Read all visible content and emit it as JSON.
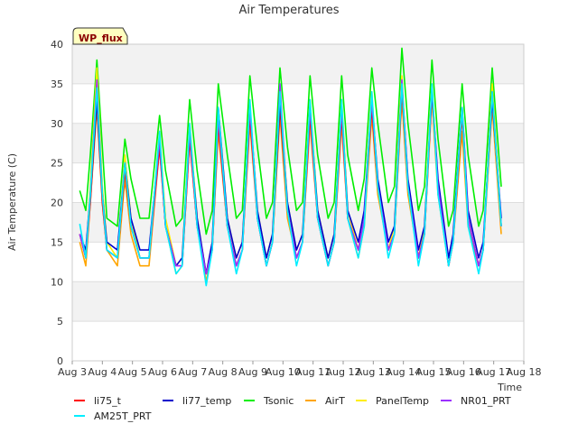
{
  "chart_data": {
    "type": "line",
    "title": "Air Temperatures",
    "xlabel": "Time",
    "ylabel": "Air Temperature (C)",
    "site_badge": "WP_flux",
    "xlim": [
      3,
      18
    ],
    "ylim": [
      0,
      40
    ],
    "x_ticks": [
      3,
      4,
      5,
      6,
      7,
      8,
      9,
      10,
      11,
      12,
      13,
      14,
      15,
      16,
      17,
      18
    ],
    "x_tick_labels": [
      "Aug 3",
      "Aug 4",
      "Aug 5",
      "Aug 6",
      "Aug 7",
      "Aug 8",
      "Aug 9",
      "Aug 10",
      "Aug 11",
      "Aug 12",
      "Aug 13",
      "Aug 14",
      "Aug 15",
      "Aug 16",
      "Aug 17",
      "Aug 18"
    ],
    "y_ticks": [
      0,
      5,
      10,
      15,
      20,
      25,
      30,
      35,
      40
    ],
    "y_tick_labels": [
      "0",
      "5",
      "10",
      "15",
      "20",
      "25",
      "30",
      "35",
      "40"
    ],
    "grid": true,
    "band_shading": true,
    "legend_position": "bottom",
    "x_value_note": "x = day of August (fractional)",
    "series": [
      {
        "name": "li75_t",
        "color": "#ff0000",
        "x": [
          3.25,
          3.45,
          3.6,
          3.82,
          4.0,
          4.15,
          4.5,
          4.75,
          4.95,
          5.25,
          5.55,
          5.9,
          6.1,
          6.45,
          6.65,
          6.9,
          7.15,
          7.45,
          7.65,
          7.85,
          8.15,
          8.45,
          8.65,
          8.9,
          9.15,
          9.45,
          9.65,
          9.9,
          10.15,
          10.45,
          10.65,
          10.9,
          11.15,
          11.5,
          11.7,
          11.95,
          12.15,
          12.5,
          12.7,
          12.95,
          13.15,
          13.5,
          13.7,
          13.95,
          14.15,
          14.5,
          14.7,
          14.95,
          15.15,
          15.5,
          15.65,
          15.95,
          16.15,
          16.5,
          16.65,
          16.95,
          17.25
        ],
        "y": [
          16,
          13,
          20,
          33,
          20,
          14,
          13,
          24,
          17,
          13,
          13,
          27,
          17,
          12,
          12,
          28,
          17,
          11,
          14,
          30,
          17,
          12,
          14,
          31,
          18,
          12,
          15,
          32,
          19,
          13,
          15,
          31,
          18,
          12,
          15,
          31,
          18,
          14,
          18,
          32,
          22,
          14,
          16,
          34,
          22,
          13,
          16,
          34,
          22,
          12,
          15,
          31,
          18,
          12,
          14,
          34,
          17
        ]
      },
      {
        "name": "li77_temp",
        "color": "#0000cc",
        "x": [
          3.25,
          3.45,
          3.6,
          3.82,
          4.0,
          4.15,
          4.5,
          4.75,
          4.95,
          5.25,
          5.55,
          5.9,
          6.1,
          6.45,
          6.65,
          6.9,
          7.15,
          7.45,
          7.65,
          7.85,
          8.15,
          8.45,
          8.65,
          8.9,
          9.15,
          9.45,
          9.65,
          9.9,
          10.15,
          10.45,
          10.65,
          10.9,
          11.15,
          11.5,
          11.7,
          11.95,
          12.15,
          12.5,
          12.7,
          12.95,
          13.15,
          13.5,
          13.7,
          13.95,
          14.15,
          14.5,
          14.7,
          14.95,
          15.15,
          15.5,
          15.65,
          15.95,
          16.15,
          16.5,
          16.65,
          16.95,
          17.25
        ],
        "y": [
          16,
          14,
          21,
          33,
          21,
          15,
          14,
          25,
          18,
          14,
          14,
          28,
          17,
          12,
          13,
          29,
          18,
          11,
          15,
          32,
          18,
          13,
          15,
          32,
          19,
          13,
          16,
          33,
          20,
          14,
          16,
          32,
          19,
          13,
          16,
          32,
          19,
          15,
          19,
          33,
          23,
          15,
          17,
          35,
          23,
          14,
          17,
          34,
          23,
          13,
          16,
          32,
          19,
          13,
          15,
          33,
          18
        ]
      },
      {
        "name": "Tsonic",
        "color": "#00ee00",
        "x": [
          3.25,
          3.45,
          3.6,
          3.82,
          4.0,
          4.15,
          4.5,
          4.75,
          4.95,
          5.25,
          5.55,
          5.9,
          6.1,
          6.45,
          6.65,
          6.9,
          7.15,
          7.45,
          7.65,
          7.85,
          8.15,
          8.45,
          8.65,
          8.9,
          9.15,
          9.45,
          9.65,
          9.9,
          10.15,
          10.45,
          10.65,
          10.9,
          11.15,
          11.5,
          11.7,
          11.95,
          12.15,
          12.5,
          12.7,
          12.95,
          13.15,
          13.5,
          13.7,
          13.95,
          14.15,
          14.5,
          14.7,
          14.95,
          15.15,
          15.5,
          15.65,
          15.95,
          16.15,
          16.5,
          16.65,
          16.95,
          17.25
        ],
        "y": [
          21.5,
          19,
          26,
          38,
          27,
          18,
          17,
          28,
          23,
          18,
          18,
          31,
          24,
          17,
          18,
          33,
          24,
          16,
          19,
          35,
          26,
          18,
          19,
          36,
          27,
          18,
          20,
          37,
          27,
          19,
          20,
          36,
          26,
          18,
          20,
          36,
          26,
          19,
          23,
          37,
          30,
          20,
          22,
          39.5,
          30,
          19,
          22,
          38,
          28,
          17,
          19,
          35,
          26,
          17,
          19,
          37,
          22
        ]
      },
      {
        "name": "AirT",
        "color": "#ffa500",
        "x": [
          3.25,
          3.45,
          3.6,
          3.82,
          4.0,
          4.15,
          4.5,
          4.75,
          4.95,
          5.25,
          5.55,
          5.9,
          6.1,
          6.45,
          6.65,
          6.9,
          7.15,
          7.45,
          7.65,
          7.85,
          8.15,
          8.45,
          8.65,
          8.9,
          9.15,
          9.45,
          9.65,
          9.9,
          10.15,
          10.45,
          10.65,
          10.9,
          11.15,
          11.5,
          11.7,
          11.95,
          12.15,
          12.5,
          12.7,
          12.95,
          13.15,
          13.5,
          13.7,
          13.95,
          14.15,
          14.5,
          14.7,
          14.95,
          15.15,
          15.5,
          15.65,
          15.95,
          16.15,
          16.5,
          16.65,
          16.95,
          17.25
        ],
        "y": [
          15,
          12,
          20,
          32,
          20,
          14,
          12,
          23,
          16,
          12,
          12,
          27,
          17,
          11,
          12,
          28,
          17,
          10,
          14,
          29,
          17,
          12,
          14,
          30,
          18,
          12,
          15,
          31,
          18,
          13,
          15,
          30,
          18,
          12,
          15,
          30,
          18,
          13,
          17,
          31,
          21,
          14,
          16,
          33,
          21,
          13,
          16,
          33,
          21,
          12,
          15,
          29,
          17,
          12,
          14,
          32,
          16
        ]
      },
      {
        "name": "PanelTemp",
        "color": "#ffee00",
        "x": [
          3.25,
          3.45,
          3.6,
          3.82,
          4.0,
          4.15,
          4.5,
          4.75,
          4.95,
          5.25,
          5.55,
          5.9,
          6.1,
          6.45,
          6.65,
          6.9,
          7.15,
          7.45,
          7.65,
          7.85,
          8.15,
          8.45,
          8.65,
          8.9,
          9.15,
          9.45,
          9.65,
          9.9,
          10.15,
          10.45,
          10.65,
          10.9,
          11.15,
          11.5,
          11.7,
          11.95,
          12.15,
          12.5,
          12.7,
          12.95,
          13.15,
          13.5,
          13.7,
          13.95,
          14.15,
          14.5,
          14.7,
          14.95,
          15.15,
          15.5,
          15.65,
          15.95,
          16.15,
          16.5,
          16.65,
          16.95,
          17.25
        ],
        "y": [
          16,
          13,
          22,
          37,
          22,
          15,
          13,
          26,
          18,
          13,
          13,
          29,
          18,
          12,
          13,
          30,
          18,
          11,
          15,
          32,
          18,
          13,
          15,
          32,
          19,
          13,
          16,
          34,
          20,
          14,
          16,
          33,
          19,
          13,
          16,
          33,
          19,
          14,
          18,
          34,
          22,
          14,
          17,
          36,
          22,
          13,
          17,
          35,
          22,
          12,
          15,
          32,
          18,
          12,
          14,
          35,
          17
        ]
      },
      {
        "name": "NR01_PRT",
        "color": "#9b30ff",
        "x": [
          3.25,
          3.45,
          3.6,
          3.82,
          4.0,
          4.15,
          4.5,
          4.75,
          4.95,
          5.25,
          5.55,
          5.9,
          6.1,
          6.45,
          6.65,
          6.9,
          7.15,
          7.45,
          7.65,
          7.85,
          8.15,
          8.45,
          8.65,
          8.9,
          9.15,
          9.45,
          9.65,
          9.9,
          10.15,
          10.45,
          10.65,
          10.9,
          11.15,
          11.5,
          11.7,
          11.95,
          12.15,
          12.5,
          12.7,
          12.95,
          13.15,
          13.5,
          13.7,
          13.95,
          14.15,
          14.5,
          14.7,
          14.95,
          15.15,
          15.5,
          15.65,
          15.95,
          16.15,
          16.5,
          16.65,
          16.95,
          17.25
        ],
        "y": [
          16,
          13,
          21,
          35.5,
          21,
          14,
          13,
          25,
          17,
          13,
          13,
          28,
          17,
          12,
          12,
          29,
          17,
          11,
          14,
          31,
          17,
          12,
          14,
          32,
          18,
          12,
          15,
          35,
          19,
          13,
          15,
          32,
          18,
          12,
          15,
          32,
          18,
          14,
          18,
          33,
          22,
          14,
          16,
          35.5,
          22,
          13,
          16,
          34.5,
          22,
          12,
          15,
          32,
          18,
          12,
          14,
          34,
          17
        ]
      },
      {
        "name": "AM25T_PRT",
        "color": "#00eeff",
        "x": [
          3.25,
          3.45,
          3.6,
          3.82,
          4.0,
          4.15,
          4.5,
          4.75,
          4.95,
          5.25,
          5.55,
          5.9,
          6.1,
          6.45,
          6.65,
          6.9,
          7.15,
          7.45,
          7.65,
          7.85,
          8.15,
          8.45,
          8.65,
          8.9,
          9.15,
          9.45,
          9.65,
          9.9,
          10.15,
          10.45,
          10.65,
          10.9,
          11.15,
          11.5,
          11.7,
          11.95,
          12.15,
          12.5,
          12.7,
          12.95,
          13.15,
          13.5,
          13.7,
          13.95,
          14.15,
          14.5,
          14.7,
          14.95,
          15.15,
          15.5,
          15.65,
          15.95,
          16.15,
          16.5,
          16.65,
          16.95,
          17.25
        ],
        "y": [
          17.3,
          13,
          21,
          34.5,
          21,
          14,
          13,
          25,
          17,
          13,
          13,
          29,
          17,
          11,
          12,
          30,
          17,
          9.5,
          14,
          32,
          17,
          11,
          14,
          33,
          18,
          12,
          15,
          34,
          19,
          12,
          15,
          33,
          18,
          12,
          15,
          33,
          18,
          13,
          17,
          34,
          22,
          13,
          16,
          35,
          22,
          12,
          16,
          35,
          21,
          12,
          15,
          32,
          17,
          11,
          14,
          34,
          17
        ]
      }
    ]
  },
  "legend": {
    "items": [
      {
        "name": "li75_t",
        "color": "#ff0000"
      },
      {
        "name": "li77_temp",
        "color": "#0000cc"
      },
      {
        "name": "Tsonic",
        "color": "#00ee00"
      },
      {
        "name": "AirT",
        "color": "#ffa500"
      },
      {
        "name": "PanelTemp",
        "color": "#ffee00"
      },
      {
        "name": "NR01_PRT",
        "color": "#9b30ff"
      },
      {
        "name": "AM25T_PRT",
        "color": "#00eeff"
      }
    ]
  }
}
